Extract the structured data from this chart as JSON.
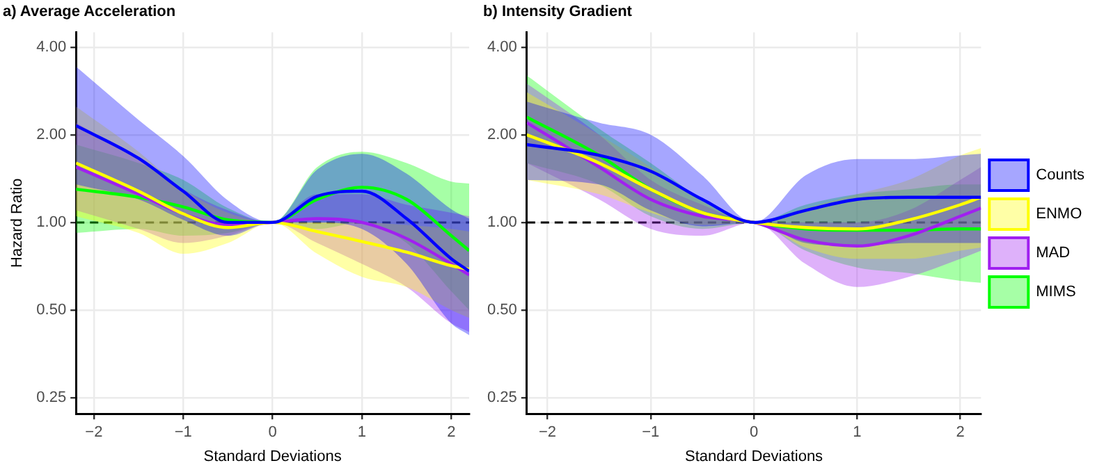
{
  "chart_data": [
    {
      "type": "line",
      "title": "a) Average Acceleration",
      "xlabel": "Standard Deviations",
      "ylabel": "Hazard Ratio",
      "log": "y",
      "grid": true,
      "legend": false,
      "xlim": [
        -2.2,
        2.2
      ],
      "xticks": [
        -2,
        -1,
        0,
        1,
        2
      ],
      "ylim": [
        0.22,
        4.5
      ],
      "yticks": [
        {
          "value": 0.25,
          "label": "0.25"
        },
        {
          "value": 0.5,
          "label": "0.50"
        },
        {
          "value": 1,
          "label": "1.00"
        },
        {
          "value": 2,
          "label": "2.00"
        },
        {
          "value": 4,
          "label": "4.00"
        }
      ],
      "ref_lines": [
        {
          "axis": "y",
          "value": 1,
          "color": "#000000",
          "line_style": "dashed"
        }
      ],
      "x": [
        -2.2,
        -1.5,
        -1,
        -0.5,
        0,
        0.5,
        1,
        1.5,
        2,
        2.2
      ],
      "series": [
        {
          "color": "#0000ff",
          "values": [
            2.15,
            1.66,
            1.28,
            1.0,
            1,
            1.23,
            1.28,
            1.03,
            0.75,
            0.68
          ],
          "lower": [
            1.35,
            1.2,
            1.02,
            0.9,
            1,
            1.0,
            0.95,
            0.72,
            0.45,
            0.41
          ],
          "upper": [
            3.43,
            2.25,
            1.69,
            1.19,
            1,
            1.52,
            1.72,
            1.47,
            1.11,
            1.03
          ]
        },
        {
          "color": "#ffff00",
          "values": [
            1.6,
            1.28,
            1.07,
            0.96,
            1,
            0.93,
            0.86,
            0.79,
            0.71,
            0.69
          ],
          "lower": [
            1.05,
            0.92,
            0.78,
            0.85,
            1,
            0.78,
            0.65,
            0.6,
            0.5,
            0.47
          ],
          "upper": [
            2.5,
            1.75,
            1.3,
            1.08,
            1,
            1.0,
            1.0,
            0.98,
            0.95,
            0.93
          ]
        },
        {
          "color": "#a020f0",
          "values": [
            1.55,
            1.25,
            1.07,
            0.98,
            1,
            1.03,
            1.0,
            0.88,
            0.72,
            0.66
          ],
          "lower": [
            1.1,
            0.95,
            0.85,
            0.9,
            1,
            0.85,
            0.72,
            0.6,
            0.45,
            0.42
          ],
          "upper": [
            2.2,
            1.65,
            1.3,
            1.1,
            1,
            1.25,
            1.25,
            1.15,
            1.08,
            1.05
          ]
        },
        {
          "color": "#00ff00",
          "values": [
            1.3,
            1.22,
            1.13,
            1.02,
            1,
            1.2,
            1.32,
            1.2,
            0.9,
            0.8
          ],
          "lower": [
            0.92,
            0.95,
            0.9,
            0.92,
            1,
            0.95,
            1.0,
            0.85,
            0.58,
            0.5
          ],
          "upper": [
            1.85,
            1.6,
            1.4,
            1.12,
            1,
            1.55,
            1.75,
            1.6,
            1.38,
            1.36
          ]
        }
      ]
    },
    {
      "type": "line",
      "title": "b) Intensity Gradient",
      "xlabel": "Standard Deviations",
      "log": "y",
      "grid": true,
      "legend": "right",
      "xlim": [
        -2.2,
        2.2
      ],
      "xticks": [
        -2,
        -1,
        0,
        1,
        2
      ],
      "ylim": [
        0.22,
        4.5
      ],
      "yticks": [
        {
          "value": 0.25,
          "label": "0.25"
        },
        {
          "value": 0.5,
          "label": "0.50"
        },
        {
          "value": 1,
          "label": "1.00"
        },
        {
          "value": 2,
          "label": "2.00"
        },
        {
          "value": 4,
          "label": "4.00"
        }
      ],
      "ref_lines": [
        {
          "axis": "y",
          "value": 1,
          "color": "#000000",
          "line_style": "dashed"
        }
      ],
      "x": [
        -2.2,
        -1.5,
        -1,
        -0.5,
        0,
        0.5,
        1,
        1.5,
        2,
        2.2
      ],
      "series": [
        {
          "name": "Counts",
          "color": "#0000ff",
          "values": [
            1.85,
            1.7,
            1.5,
            1.2,
            1,
            1.1,
            1.2,
            1.22,
            1.22,
            1.22
          ],
          "lower": [
            1.4,
            1.35,
            1.1,
            0.97,
            1,
            0.85,
            0.83,
            0.85,
            0.85,
            0.85
          ],
          "upper": [
            2.6,
            2.2,
            2.0,
            1.45,
            1,
            1.45,
            1.65,
            1.65,
            1.7,
            1.72
          ]
        },
        {
          "name": "ENMO",
          "color": "#ffff00",
          "values": [
            2.0,
            1.6,
            1.3,
            1.08,
            1,
            0.96,
            0.95,
            1.02,
            1.15,
            1.22
          ],
          "lower": [
            1.4,
            1.25,
            1.08,
            0.98,
            1,
            0.82,
            0.75,
            0.75,
            0.8,
            0.82
          ],
          "upper": [
            2.8,
            2.0,
            1.55,
            1.18,
            1,
            1.12,
            1.25,
            1.4,
            1.7,
            1.8
          ]
        },
        {
          "name": "MAD",
          "color": "#a020f0",
          "values": [
            2.2,
            1.55,
            1.2,
            1.05,
            1,
            0.87,
            0.83,
            0.9,
            1.05,
            1.12
          ],
          "lower": [
            1.6,
            1.2,
            0.95,
            0.9,
            1,
            0.72,
            0.6,
            0.65,
            0.75,
            0.8
          ],
          "upper": [
            3.0,
            2.0,
            1.4,
            1.15,
            1,
            1.0,
            1.0,
            1.1,
            1.4,
            1.55
          ]
        },
        {
          "name": "MIMS",
          "color": "#00ff00",
          "values": [
            2.3,
            1.7,
            1.3,
            1.08,
            1,
            0.95,
            0.94,
            0.94,
            0.95,
            0.95
          ],
          "lower": [
            1.6,
            1.35,
            1.05,
            0.95,
            1,
            0.8,
            0.7,
            0.67,
            0.63,
            0.62
          ],
          "upper": [
            3.2,
            2.1,
            1.6,
            1.2,
            1,
            1.15,
            1.25,
            1.3,
            1.35,
            1.35
          ]
        }
      ]
    }
  ]
}
